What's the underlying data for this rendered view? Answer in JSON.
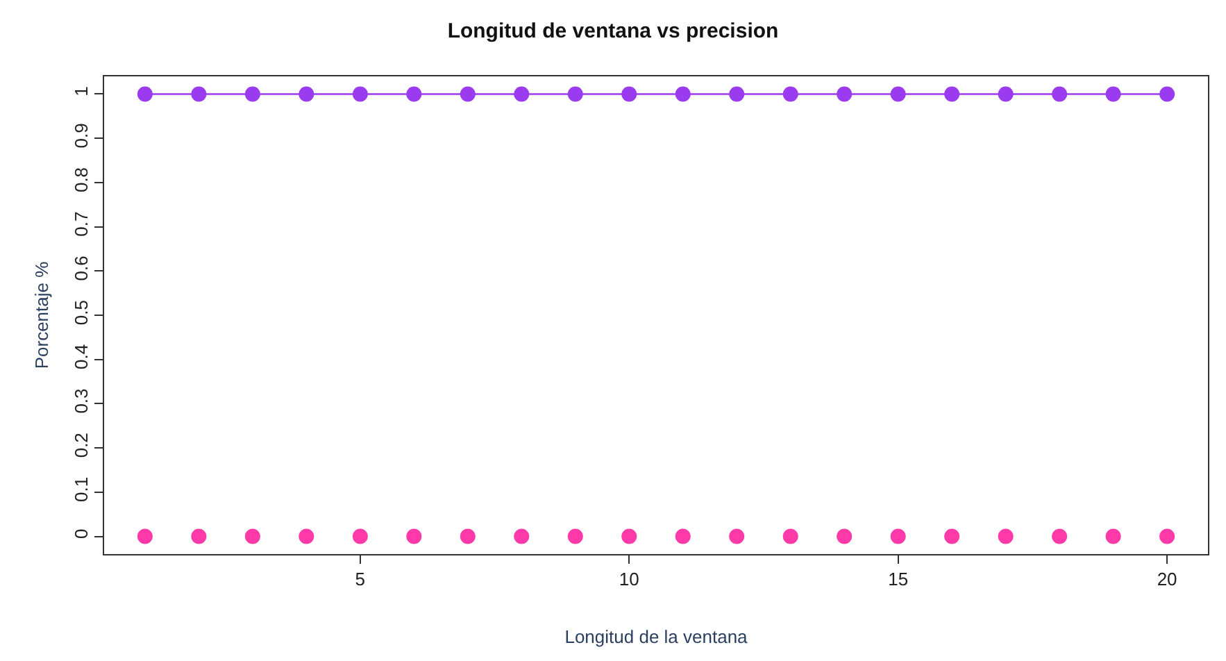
{
  "chart_data": {
    "type": "line",
    "title": "Longitud de ventana vs precision",
    "xlabel": "Longitud de la ventana",
    "ylabel": "Porcentaje %",
    "x": [
      1,
      2,
      3,
      4,
      5,
      6,
      7,
      8,
      9,
      10,
      11,
      12,
      13,
      14,
      15,
      16,
      17,
      18,
      19,
      20
    ],
    "series": [
      {
        "color": "#9b3bf0",
        "values": [
          1,
          1,
          1,
          1,
          1,
          1,
          1,
          1,
          1,
          1,
          1,
          1,
          1,
          1,
          1,
          1,
          1,
          1,
          1,
          1
        ]
      },
      {
        "type": "scatter",
        "color": "#ff3aa8",
        "values": [
          0,
          0,
          0,
          0,
          0,
          0,
          0,
          0,
          0,
          0,
          0,
          0,
          0,
          0,
          0,
          0,
          0,
          0,
          0,
          0
        ]
      }
    ],
    "xlim": [
      0.24,
      20.76
    ],
    "ylim": [
      -0.04,
      1.04
    ],
    "xticks": [
      5,
      10,
      15,
      20
    ],
    "yticks": [
      0,
      0.1,
      0.2,
      0.3,
      0.4,
      0.5,
      0.6,
      0.7,
      0.8,
      0.9,
      1
    ],
    "grid": false,
    "legend": false,
    "marker": "circle",
    "line_style": "solid"
  }
}
